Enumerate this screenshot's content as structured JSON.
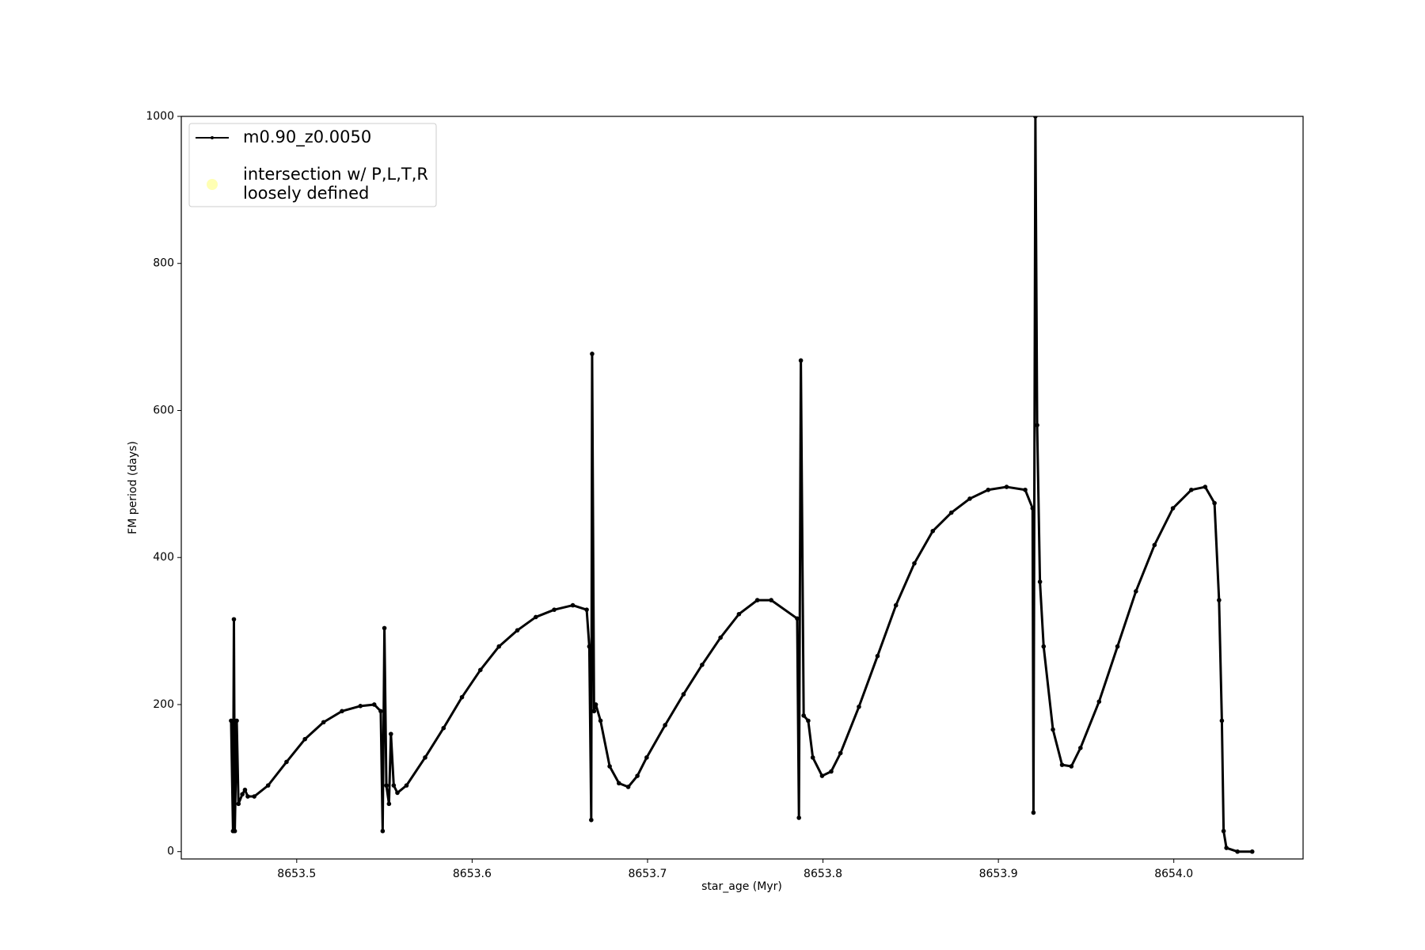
{
  "chart_data": {
    "type": "line",
    "xlabel": "star_age (Myr)",
    "ylabel": "FM period (days)",
    "xlim": [
      8653.4342,
      8654.0737
    ],
    "ylim": [
      -10,
      1000
    ],
    "xticks": [
      8653.5,
      8653.6,
      8653.7,
      8653.8,
      8653.9,
      {
        "value": 8654,
        "label": "8654.0"
      }
    ],
    "yticks": [
      0,
      200,
      400,
      600,
      800,
      1000
    ],
    "legend": "upper left",
    "x": [
      8653.4626,
      8653.4637,
      8653.4642,
      8653.4647,
      8653.4658,
      8653.4668,
      8653.469,
      8653.4705,
      8653.4721,
      8653.4758,
      8653.4837,
      8653.4942,
      8653.5047,
      8653.5153,
      8653.5258,
      8653.5363,
      8653.5442,
      8653.5479,
      8653.549,
      8653.55,
      8653.5511,
      8653.5526,
      8653.5537,
      8653.5553,
      8653.5574,
      8653.5626,
      8653.5732,
      8653.5837,
      8653.5942,
      8653.6047,
      8653.6153,
      8653.6258,
      8653.6363,
      8653.6468,
      8653.6574,
      8653.6653,
      8653.6668,
      8653.6679,
      8653.6684,
      8653.6695,
      8653.6705,
      8653.6732,
      8653.6784,
      8653.6837,
      8653.689,
      8653.6942,
      8653.6995,
      8653.71,
      8653.7205,
      8653.7311,
      8653.7416,
      8653.7521,
      8653.7626,
      8653.7705,
      8653.7853,
      8653.7863,
      8653.7874,
      8653.789,
      8653.7916,
      8653.7942,
      8653.7995,
      8653.8047,
      8653.81,
      8653.8205,
      8653.8311,
      8653.8416,
      8653.8521,
      8653.8626,
      8653.8732,
      8653.8837,
      8653.8942,
      8653.9047,
      8653.9153,
      8653.9195,
      8653.92,
      8653.9211,
      8653.9221,
      8653.9237,
      8653.9258,
      8653.9311,
      8653.9363,
      8653.9416,
      8653.9468,
      8653.9574,
      8653.9679,
      8653.9784,
      8653.989,
      8653.9995,
      8654.01,
      8654.0179,
      8654.0232,
      8654.0258,
      8654.0274,
      8654.0284,
      8654.03,
      8654.0363,
      8654.0447
    ],
    "series": [
      {
        "name": "m0.90_z0.0050",
        "color": "#000000",
        "marker": "dot",
        "values": [
          178,
          28,
          316,
          28,
          178,
          65,
          78,
          84,
          75,
          75,
          90,
          122,
          153,
          176,
          191,
          198,
          200,
          191,
          28,
          304,
          90,
          65,
          160,
          90,
          80,
          90,
          128,
          168,
          210,
          247,
          279,
          301,
          319,
          329,
          335,
          329,
          279,
          43,
          677,
          191,
          200,
          178,
          116,
          93,
          88,
          103,
          128,
          172,
          214,
          254,
          291,
          323,
          342,
          342,
          317,
          46,
          668,
          185,
          178,
          128,
          103,
          109,
          134,
          197,
          266,
          335,
          392,
          436,
          461,
          480,
          492,
          496,
          492,
          467,
          53,
          1000,
          580,
          367,
          279,
          166,
          118,
          116,
          141,
          204,
          279,
          354,
          417,
          467,
          492,
          496,
          474,
          342,
          178,
          28,
          5,
          0,
          0
        ]
      },
      {
        "name": "intersection w/ P,L,T,R\nloosely defined",
        "color": "#ffffb3",
        "marker": "circle",
        "type": "scatter",
        "x": [],
        "values": []
      }
    ]
  }
}
